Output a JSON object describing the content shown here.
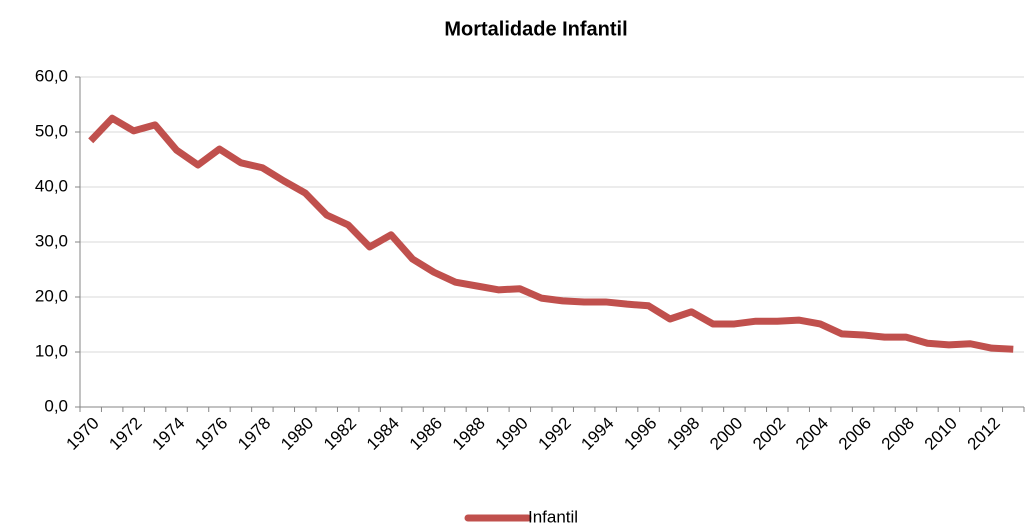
{
  "chart_data": {
    "type": "line",
    "title": "Mortalidade Infantil",
    "categories": [
      "1970",
      null,
      "1972",
      null,
      "1974",
      null,
      "1976",
      null,
      "1978",
      null,
      "1980",
      null,
      "1982",
      null,
      "1984",
      null,
      "1986",
      null,
      "1988",
      null,
      "1990",
      null,
      "1992",
      null,
      "1994",
      null,
      "1996",
      null,
      "1998",
      null,
      "2000",
      null,
      "2002",
      null,
      "2004",
      null,
      "2006",
      null,
      "2008",
      null,
      "2010",
      null,
      "2012",
      null
    ],
    "series": [
      {
        "name": "Infantil",
        "color": "#c0504d",
        "values": [
          48.4,
          52.5,
          50.2,
          51.3,
          46.7,
          44.0,
          46.9,
          44.4,
          43.5,
          41.1,
          38.9,
          34.9,
          33.1,
          29.1,
          31.3,
          26.9,
          24.5,
          22.7,
          22.0,
          21.3,
          21.5,
          19.8,
          19.3,
          19.1,
          19.1,
          18.7,
          18.4,
          16.0,
          17.3,
          15.1,
          15.1,
          15.6,
          15.6,
          15.8,
          15.1,
          13.3,
          13.1,
          12.7,
          12.7,
          11.6,
          11.3,
          11.5,
          10.7,
          10.5
        ]
      }
    ],
    "ylim": [
      0,
      60
    ],
    "yticks": [
      {
        "value": 0,
        "label": "0,0"
      },
      {
        "value": 10,
        "label": "10,0"
      },
      {
        "value": 20,
        "label": "20,0"
      },
      {
        "value": 30,
        "label": "30,0"
      },
      {
        "value": 40,
        "label": "40,0"
      },
      {
        "value": 50,
        "label": "50,0"
      },
      {
        "value": 60,
        "label": "60,0"
      }
    ],
    "grid": true,
    "legend": "bottom"
  }
}
